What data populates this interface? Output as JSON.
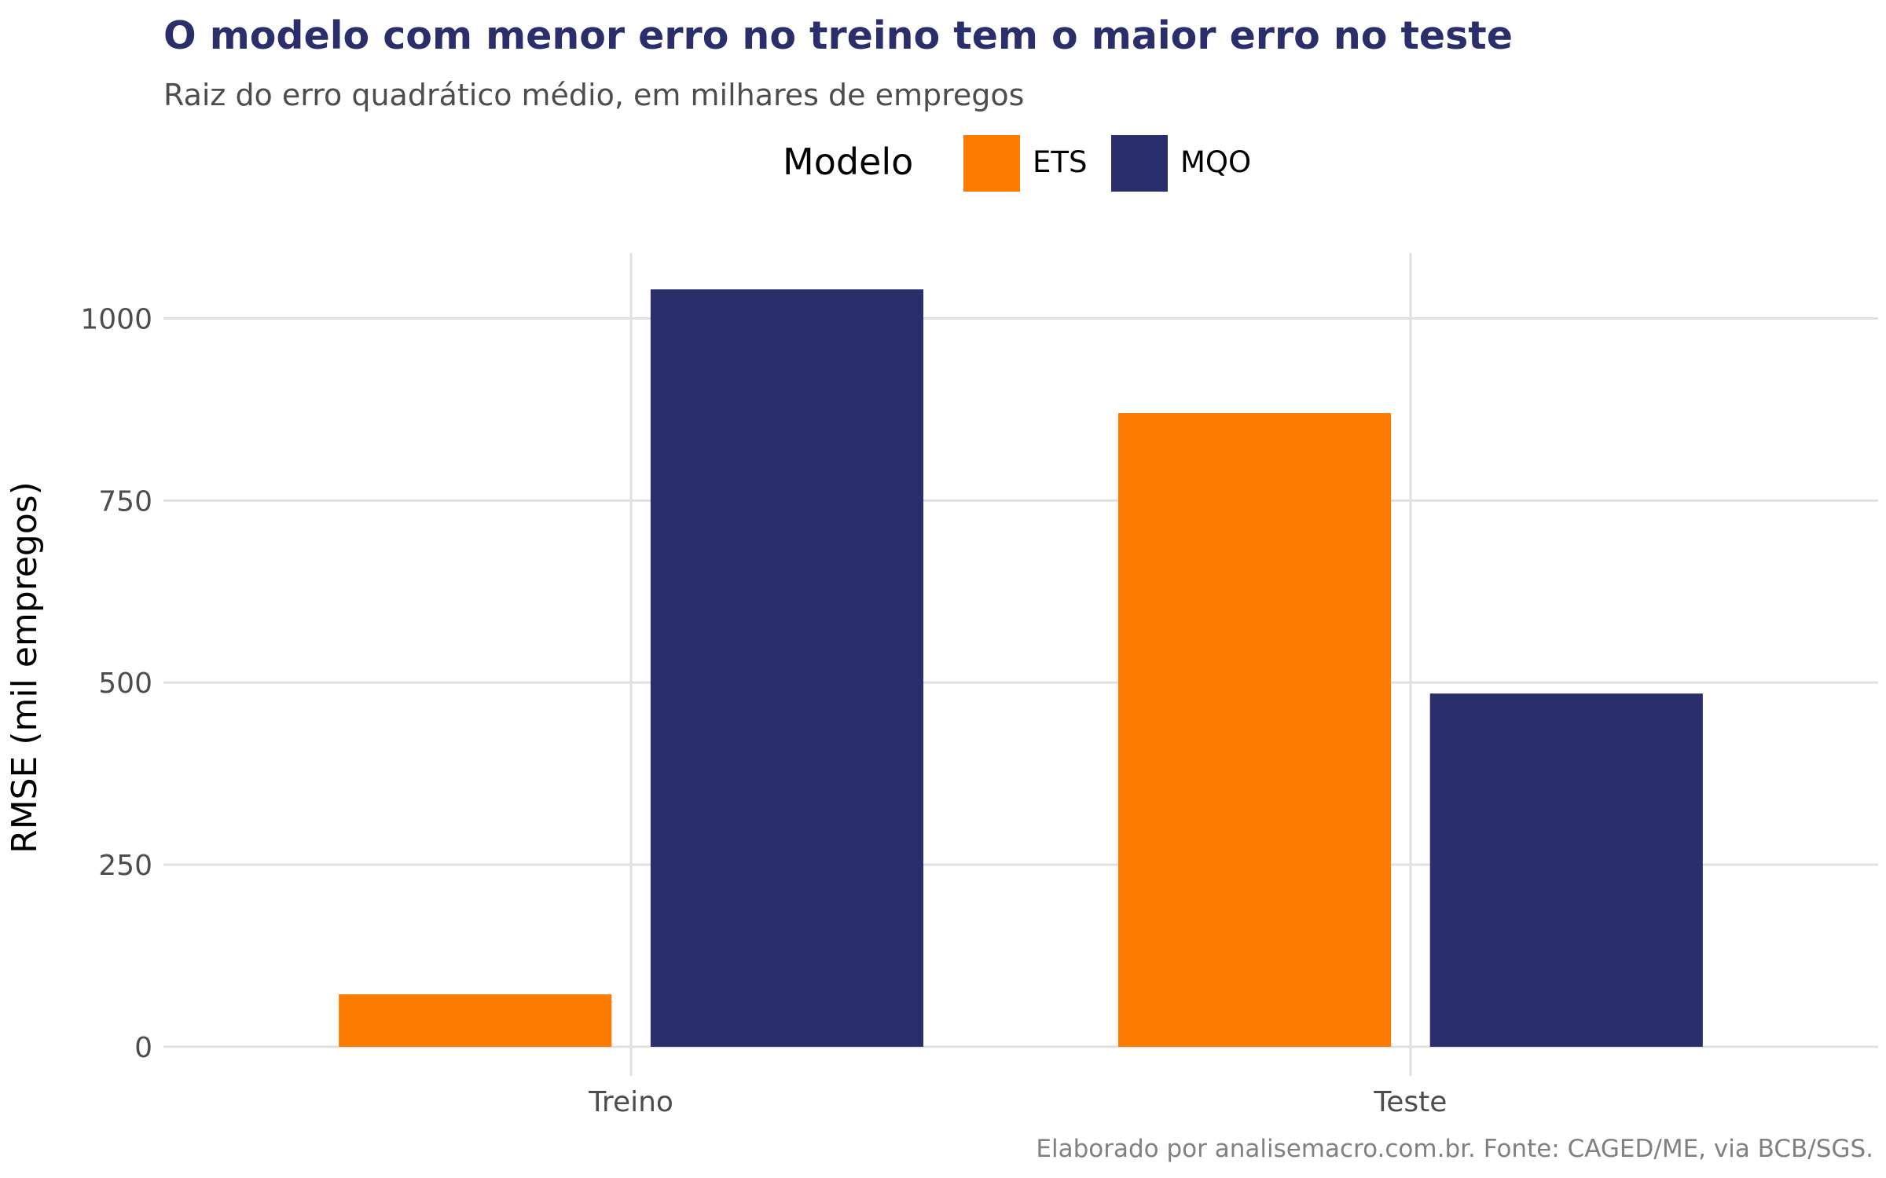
{
  "chart_data": {
    "type": "bar",
    "title": "O modelo com menor erro no treino tem o maior erro no teste",
    "subtitle": "Raiz do erro quadrático médio, em milhares de empregos",
    "caption": "Elaborado por analisemacro.com.br. Fonte: CAGED/ME, via BCB/SGS.",
    "xlabel": "",
    "ylabel": "RMSE (mil empregos)",
    "categories": [
      "Treino",
      "Teste"
    ],
    "legend": {
      "title": "Modelo",
      "placement": "top"
    },
    "series": [
      {
        "name": "ETS",
        "color": "#ff7b00",
        "values": [
          72,
          870
        ]
      },
      {
        "name": "MQO",
        "color": "#2a2e6a",
        "values": [
          1040,
          485
        ]
      }
    ],
    "yticks": [
      0,
      250,
      500,
      750,
      1000
    ],
    "ylim": [
      -40,
      1090
    ],
    "grid": true,
    "colors": {
      "title": "#2a2e6a",
      "subtitle": "#4d4d4d",
      "tick": "#4d4d4d",
      "caption": "#808080",
      "grid": "#e0e0e0"
    }
  }
}
